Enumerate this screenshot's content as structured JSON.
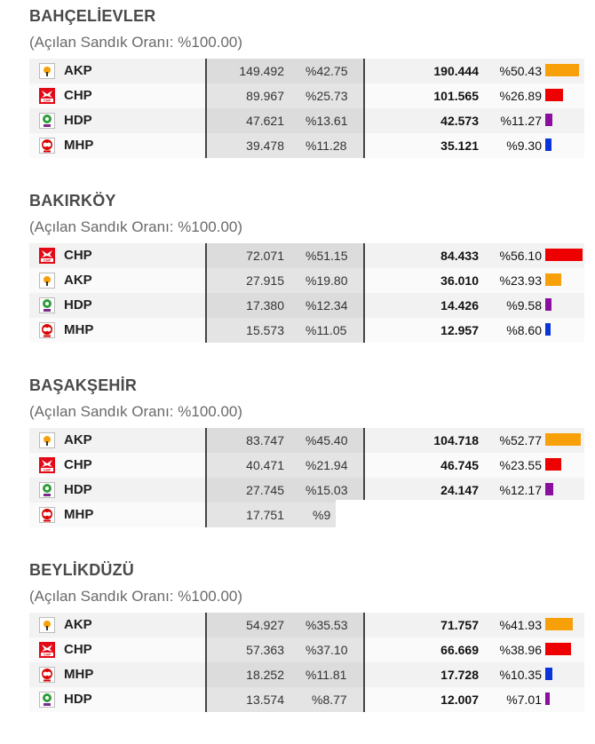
{
  "colors": {
    "AKP": "#f7a00a",
    "CHP": "#ee0000",
    "HDP": "#8a0f9e",
    "MHP": "#0a35d8"
  },
  "districts": [
    {
      "name": "BAHÇELİEVLER",
      "subtitle": "(Açılan Sandık Oranı: %100.00)",
      "rows": [
        {
          "party": "AKP",
          "votes1": "149.492",
          "pct1": "%42.75",
          "votes2": "190.444",
          "pct2": "%50.43",
          "share": 0.5043
        },
        {
          "party": "CHP",
          "votes1": "89.967",
          "pct1": "%25.73",
          "votes2": "101.565",
          "pct2": "%26.89",
          "share": 0.2689
        },
        {
          "party": "HDP",
          "votes1": "47.621",
          "pct1": "%13.61",
          "votes2": "42.573",
          "pct2": "%11.27",
          "share": 0.1127
        },
        {
          "party": "MHP",
          "votes1": "39.478",
          "pct1": "%11.28",
          "votes2": "35.121",
          "pct2": "%9.30",
          "share": 0.093
        }
      ]
    },
    {
      "name": "BAKIRKÖY",
      "subtitle": "(Açılan Sandık Oranı: %100.00)",
      "rows": [
        {
          "party": "CHP",
          "votes1": "72.071",
          "pct1": "%51.15",
          "votes2": "84.433",
          "pct2": "%56.10",
          "share": 0.561
        },
        {
          "party": "AKP",
          "votes1": "27.915",
          "pct1": "%19.80",
          "votes2": "36.010",
          "pct2": "%23.93",
          "share": 0.2393
        },
        {
          "party": "HDP",
          "votes1": "17.380",
          "pct1": "%12.34",
          "votes2": "14.426",
          "pct2": "%9.58",
          "share": 0.0958
        },
        {
          "party": "MHP",
          "votes1": "15.573",
          "pct1": "%11.05",
          "votes2": "12.957",
          "pct2": "%8.60",
          "share": 0.086
        }
      ]
    },
    {
      "name": "BAŞAKŞEHİR",
      "subtitle": "(Açılan Sandık Oranı: %100.00)",
      "rows": [
        {
          "party": "AKP",
          "votes1": "83.747",
          "pct1": "%45.40",
          "votes2": "104.718",
          "pct2": "%52.77",
          "share": 0.5277
        },
        {
          "party": "CHP",
          "votes1": "40.471",
          "pct1": "%21.94",
          "votes2": "46.745",
          "pct2": "%23.55",
          "share": 0.2355
        },
        {
          "party": "HDP",
          "votes1": "27.745",
          "pct1": "%15.03",
          "votes2": "24.147",
          "pct2": "%12.17",
          "share": 0.1217
        },
        {
          "party": "MHP",
          "votes1": "17.751",
          "pct1": "%9",
          "votes2": "",
          "pct2": "",
          "share": 0
        }
      ]
    },
    {
      "name": "BEYLİKDÜZÜ",
      "subtitle": "(Açılan Sandık Oranı: %100.00)",
      "rows": [
        {
          "party": "AKP",
          "votes1": "54.927",
          "pct1": "%35.53",
          "votes2": "71.757",
          "pct2": "%41.93",
          "share": 0.4193
        },
        {
          "party": "CHP",
          "votes1": "57.363",
          "pct1": "%37.10",
          "votes2": "66.669",
          "pct2": "%38.96",
          "share": 0.3896
        },
        {
          "party": "MHP",
          "votes1": "18.252",
          "pct1": "%11.81",
          "votes2": "17.728",
          "pct2": "%10.35",
          "share": 0.1035
        },
        {
          "party": "HDP",
          "votes1": "13.574",
          "pct1": "%8.77",
          "votes2": "12.007",
          "pct2": "%7.01",
          "share": 0.0701
        }
      ]
    }
  ]
}
